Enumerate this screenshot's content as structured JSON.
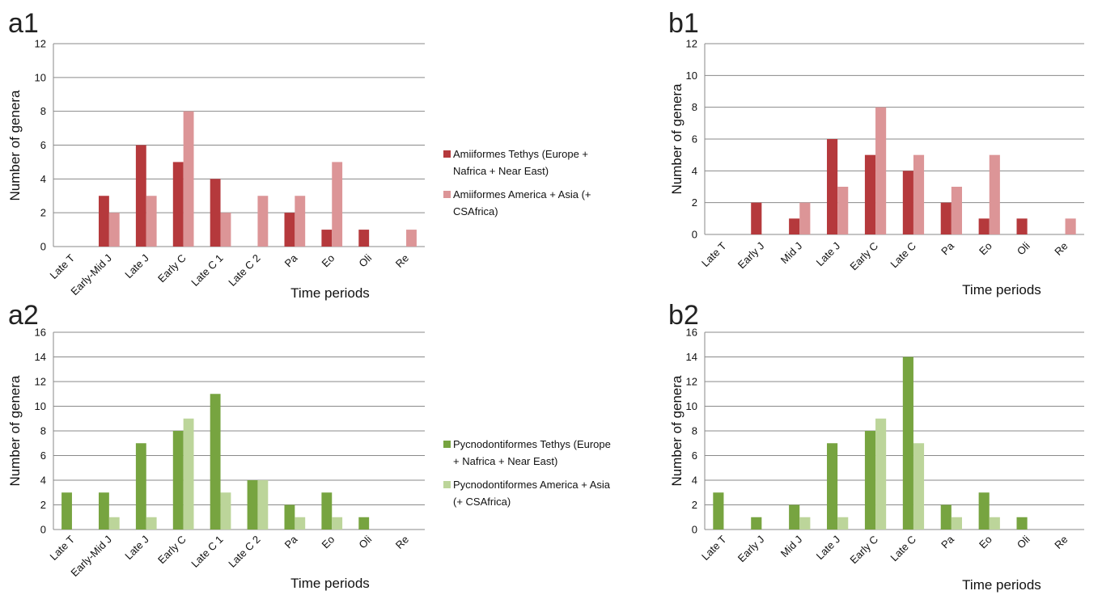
{
  "colors": {
    "amii_tethys": "#b5393c",
    "amii_america": "#dc9597",
    "pyc_tethys": "#77a440",
    "pyc_america": "#bcd59a"
  },
  "legends": {
    "a1": [
      {
        "color_key": "amii_tethys",
        "lines": [
          "Amiiformes Tethys (Europe +",
          "Nafrica + Near East)"
        ]
      },
      {
        "color_key": "amii_america",
        "lines": [
          "Amiiformes America + Asia (+",
          "CSAfrica)"
        ]
      }
    ],
    "a2": [
      {
        "color_key": "pyc_tethys",
        "lines": [
          "Pycnodontiformes Tethys (Europe",
          "+ Nafrica + Near East)"
        ]
      },
      {
        "color_key": "pyc_america",
        "lines": [
          "Pycnodontiformes America + Asia",
          "(+ CSAfrica)"
        ]
      }
    ]
  },
  "chart_data": [
    {
      "id": "a1",
      "type": "bar",
      "panel_label": "a1",
      "xlabel": "Time periods",
      "ylabel": "Number of genera",
      "ylim": [
        0,
        12
      ],
      "ytick_step": 2,
      "categories": [
        "Late T",
        "Early-Mid J",
        "Late J",
        "Early C",
        "Late C 1",
        "Late C 2",
        "Pa",
        "Eo",
        "Oli",
        "Re"
      ],
      "series": [
        {
          "name": "Amiiformes Tethys (Europe + Nafrica + Near East)",
          "color_key": "amii_tethys",
          "values": [
            0,
            3,
            6,
            5,
            4,
            0,
            2,
            1,
            1,
            0
          ]
        },
        {
          "name": "Amiiformes America + Asia (+ CSAfrica)",
          "color_key": "amii_america",
          "values": [
            0,
            2,
            3,
            8,
            2,
            3,
            3,
            5,
            0,
            1
          ]
        }
      ]
    },
    {
      "id": "b1",
      "type": "bar",
      "panel_label": "b1",
      "xlabel": "Time periods",
      "ylabel": "Number of genera",
      "ylim": [
        0,
        12
      ],
      "ytick_step": 2,
      "categories": [
        "Late T",
        "Early J",
        "Mid J",
        "Late J",
        "Early C",
        "Late C",
        "Pa",
        "Eo",
        "Oli",
        "Re"
      ],
      "series": [
        {
          "color_key": "amii_tethys",
          "values": [
            0,
            2,
            1,
            6,
            5,
            4,
            2,
            1,
            1,
            0
          ]
        },
        {
          "color_key": "amii_america",
          "values": [
            0,
            0,
            2,
            3,
            8,
            5,
            3,
            5,
            0,
            1
          ]
        }
      ]
    },
    {
      "id": "a2",
      "type": "bar",
      "panel_label": "a2",
      "xlabel": "Time periods",
      "ylabel": "Number of genera",
      "ylim": [
        0,
        16
      ],
      "ytick_step": 2,
      "categories": [
        "Late T",
        "Early-Mid J",
        "Late J",
        "Early C",
        "Late C 1",
        "Late C 2",
        "Pa",
        "Eo",
        "Oli",
        "Re"
      ],
      "series": [
        {
          "name": "Pycnodontiformes Tethys (Europe + Nafrica + Near East)",
          "color_key": "pyc_tethys",
          "values": [
            3,
            3,
            7,
            8,
            11,
            4,
            2,
            3,
            1,
            0
          ]
        },
        {
          "name": "Pycnodontiformes America + Asia (+ CSAfrica)",
          "color_key": "pyc_america",
          "values": [
            0,
            1,
            1,
            9,
            3,
            4,
            1,
            1,
            0,
            0
          ]
        }
      ]
    },
    {
      "id": "b2",
      "type": "bar",
      "panel_label": "b2",
      "xlabel": "Time periods",
      "ylabel": "Number of genera",
      "ylim": [
        0,
        16
      ],
      "ytick_step": 2,
      "categories": [
        "Late T",
        "Early J",
        "Mid J",
        "Late J",
        "Early C",
        "Late C",
        "Pa",
        "Eo",
        "Oli",
        "Re"
      ],
      "series": [
        {
          "color_key": "pyc_tethys",
          "values": [
            3,
            1,
            2,
            7,
            8,
            14,
            2,
            3,
            1,
            0
          ]
        },
        {
          "color_key": "pyc_america",
          "values": [
            0,
            0,
            1,
            1,
            9,
            7,
            1,
            1,
            0,
            0
          ]
        }
      ]
    }
  ]
}
